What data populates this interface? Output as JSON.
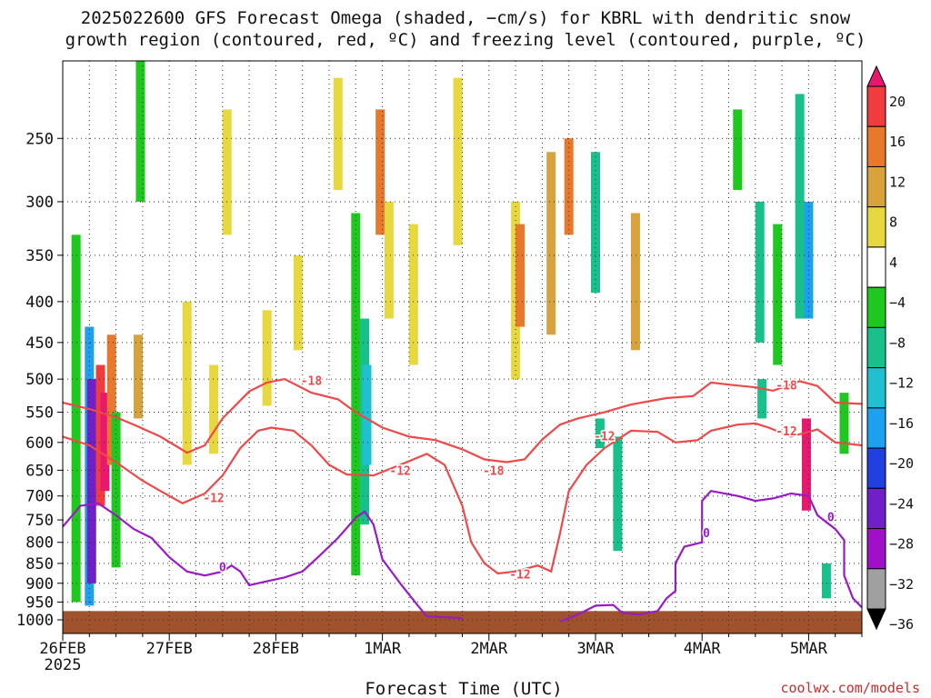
{
  "title": {
    "line1": "2025022600 GFS Forecast Omega (shaded, −cm/s) for KBRL with dendritic snow",
    "line2": "growth region (contoured, red, ºC) and freezing level (contoured, purple, ºC)"
  },
  "watermark": "coolwx.com/models",
  "chart_data": {
    "type": "heatmap",
    "title": "2025022600 GFS Forecast Omega (shaded, −cm/s) for KBRL with dendritic snow growth region (contoured, red, ºC) and freezing level (contoured, purple, ºC)",
    "xlabel": "Forecast Time (UTC)",
    "ylabel": "",
    "x_range_days_labels": [
      "26FEB",
      "27FEB",
      "28FEB",
      "1MAR",
      "2MAR",
      "3MAR",
      "4MAR",
      "5MAR"
    ],
    "x_year_label": "2025",
    "x_ticks": [
      {
        "label": "26FEB",
        "hour": 0
      },
      {
        "label": "27FEB",
        "hour": 24
      },
      {
        "label": "28FEB",
        "hour": 48
      },
      {
        "label": "1MAR",
        "hour": 72
      },
      {
        "label": "2MAR",
        "hour": 96
      },
      {
        "label": "3MAR",
        "hour": 120
      },
      {
        "label": "4MAR",
        "hour": 144
      },
      {
        "label": "5MAR",
        "hour": 168
      }
    ],
    "x_max_hour": 180,
    "y_axis": "pressure (hPa), log scale, inverted",
    "y_ticks": [
      250,
      300,
      350,
      400,
      450,
      500,
      550,
      600,
      650,
      700,
      750,
      800,
      850,
      900,
      950,
      1000
    ],
    "y_range": [
      200,
      1040
    ],
    "grid": "dotted",
    "colorbar": {
      "levels": [
        "20",
        "16",
        "12",
        "8",
        "4",
        "−4",
        "−8",
        "−12",
        "−16",
        "−20",
        "−24",
        "−28",
        "−32",
        "−36"
      ],
      "colors": [
        "#e8186e",
        "#f03c3c",
        "#e8782c",
        "#d8a23c",
        "#e8d840",
        "#ffffff",
        "#1ec81e",
        "#18c08c",
        "#20c0d0",
        "#1ea0f0",
        "#2040e0",
        "#7020c8",
        "#a010c8",
        "#a0a0a0",
        "#000000"
      ]
    },
    "omega_cells": [
      {
        "hour": 3,
        "p_top": 330,
        "p_bot": 950,
        "v": -8
      },
      {
        "hour": 6,
        "p_top": 430,
        "p_bot": 960,
        "v": -20
      },
      {
        "hour": 6.5,
        "p_top": 500,
        "p_bot": 900,
        "v": -28
      },
      {
        "hour": 8.5,
        "p_top": 480,
        "p_bot": 720,
        "v": 16
      },
      {
        "hour": 9.5,
        "p_top": 520,
        "p_bot": 690,
        "v": 20
      },
      {
        "hour": 11,
        "p_top": 440,
        "p_bot": 640,
        "v": 12
      },
      {
        "hour": 12,
        "p_top": 550,
        "p_bot": 860,
        "v": -8
      },
      {
        "hour": 17,
        "p_top": 440,
        "p_bot": 560,
        "v": 8
      },
      {
        "hour": 17.5,
        "p_top": 200,
        "p_bot": 300,
        "v": -8
      },
      {
        "hour": 28,
        "p_top": 400,
        "p_bot": 640,
        "v": 4
      },
      {
        "hour": 34,
        "p_top": 480,
        "p_bot": 620,
        "v": 4
      },
      {
        "hour": 37,
        "p_top": 230,
        "p_bot": 330,
        "v": 4
      },
      {
        "hour": 46,
        "p_top": 410,
        "p_bot": 540,
        "v": 4
      },
      {
        "hour": 53,
        "p_top": 350,
        "p_bot": 460,
        "v": 4
      },
      {
        "hour": 62,
        "p_top": 210,
        "p_bot": 290,
        "v": 4
      },
      {
        "hour": 66,
        "p_top": 310,
        "p_bot": 880,
        "v": -8
      },
      {
        "hour": 68,
        "p_top": 420,
        "p_bot": 760,
        "v": -12
      },
      {
        "hour": 68.5,
        "p_top": 480,
        "p_bot": 640,
        "v": -16
      },
      {
        "hour": 71.5,
        "p_top": 230,
        "p_bot": 330,
        "v": 12
      },
      {
        "hour": 73.5,
        "p_top": 300,
        "p_bot": 420,
        "v": 4
      },
      {
        "hour": 79,
        "p_top": 320,
        "p_bot": 480,
        "v": 4
      },
      {
        "hour": 89,
        "p_top": 210,
        "p_bot": 340,
        "v": 4
      },
      {
        "hour": 102,
        "p_top": 300,
        "p_bot": 500,
        "v": 4
      },
      {
        "hour": 103,
        "p_top": 320,
        "p_bot": 430,
        "v": 12
      },
      {
        "hour": 110,
        "p_top": 260,
        "p_bot": 440,
        "v": 8
      },
      {
        "hour": 114,
        "p_top": 250,
        "p_bot": 330,
        "v": 12
      },
      {
        "hour": 120,
        "p_top": 260,
        "p_bot": 390,
        "v": -12
      },
      {
        "hour": 121,
        "p_top": 560,
        "p_bot": 610,
        "v": -12
      },
      {
        "hour": 125,
        "p_top": 590,
        "p_bot": 820,
        "v": -12
      },
      {
        "hour": 129,
        "p_top": 310,
        "p_bot": 460,
        "v": 8
      },
      {
        "hour": 152,
        "p_top": 230,
        "p_bot": 290,
        "v": -8
      },
      {
        "hour": 157,
        "p_top": 300,
        "p_bot": 450,
        "v": -12
      },
      {
        "hour": 157.5,
        "p_top": 500,
        "p_bot": 560,
        "v": -12
      },
      {
        "hour": 161,
        "p_top": 320,
        "p_bot": 480,
        "v": -8
      },
      {
        "hour": 166,
        "p_top": 220,
        "p_bot": 420,
        "v": -12
      },
      {
        "hour": 168,
        "p_top": 300,
        "p_bot": 420,
        "v": -20
      },
      {
        "hour": 167.5,
        "p_top": 560,
        "p_bot": 730,
        "v": 20
      },
      {
        "hour": 172,
        "p_top": 850,
        "p_bot": 940,
        "v": -12
      },
      {
        "hour": 176,
        "p_top": 520,
        "p_bot": 620,
        "v": -8
      }
    ],
    "contours": {
      "dendritic_minus12": {
        "color": "#f04848",
        "label": "-12",
        "points": [
          [
            0,
            590
          ],
          [
            6,
            605
          ],
          [
            12,
            635
          ],
          [
            18,
            670
          ],
          [
            22,
            690
          ],
          [
            27,
            715
          ],
          [
            32,
            695
          ],
          [
            36,
            660
          ],
          [
            40,
            610
          ],
          [
            44,
            580
          ],
          [
            47,
            575
          ],
          [
            52,
            580
          ],
          [
            56,
            605
          ],
          [
            60,
            640
          ],
          [
            64,
            658
          ],
          [
            70,
            660
          ],
          [
            76,
            640
          ],
          [
            82,
            620
          ],
          [
            86,
            640
          ],
          [
            90,
            720
          ],
          [
            92,
            800
          ],
          [
            95,
            850
          ],
          [
            98,
            875
          ],
          [
            102,
            870
          ],
          [
            107,
            855
          ],
          [
            110,
            870
          ],
          [
            112,
            780
          ],
          [
            114,
            690
          ],
          [
            118,
            640
          ],
          [
            122,
            610
          ],
          [
            128,
            580
          ],
          [
            134,
            582
          ],
          [
            138,
            600
          ],
          [
            143,
            596
          ],
          [
            146,
            580
          ],
          [
            152,
            570
          ],
          [
            156,
            568
          ],
          [
            159,
            575
          ],
          [
            164,
            590
          ],
          [
            170,
            578
          ],
          [
            174,
            600
          ],
          [
            180,
            605
          ]
        ]
      },
      "dendritic_minus18": {
        "color": "#f04848",
        "label": "-18",
        "points": [
          [
            0,
            535
          ],
          [
            6,
            545
          ],
          [
            12,
            558
          ],
          [
            16,
            570
          ],
          [
            22,
            590
          ],
          [
            28,
            618
          ],
          [
            32,
            605
          ],
          [
            36,
            560
          ],
          [
            42,
            518
          ],
          [
            46,
            505
          ],
          [
            50,
            500
          ],
          [
            56,
            520
          ],
          [
            62,
            530
          ],
          [
            66,
            550
          ],
          [
            72,
            575
          ],
          [
            78,
            590
          ],
          [
            84,
            596
          ],
          [
            90,
            612
          ],
          [
            95,
            630
          ],
          [
            100,
            635
          ],
          [
            104,
            630
          ],
          [
            108,
            595
          ],
          [
            112,
            570
          ],
          [
            116,
            560
          ],
          [
            122,
            550
          ],
          [
            128,
            538
          ],
          [
            136,
            528
          ],
          [
            142,
            525
          ],
          [
            146,
            505
          ],
          [
            150,
            508
          ],
          [
            156,
            512
          ],
          [
            160,
            517
          ],
          [
            166,
            503
          ],
          [
            170,
            510
          ],
          [
            174,
            535
          ],
          [
            180,
            537
          ]
        ]
      },
      "freezing_0": {
        "color": "#9a1ac8",
        "label": "0",
        "points": [
          [
            0,
            765
          ],
          [
            4,
            720
          ],
          [
            8,
            715
          ],
          [
            12,
            740
          ],
          [
            16,
            770
          ],
          [
            20,
            790
          ],
          [
            24,
            835
          ],
          [
            28,
            870
          ],
          [
            32,
            880
          ],
          [
            36,
            870
          ],
          [
            38,
            855
          ],
          [
            40,
            870
          ],
          [
            42,
            905
          ],
          [
            46,
            895
          ],
          [
            50,
            885
          ],
          [
            54,
            870
          ],
          [
            58,
            830
          ],
          [
            62,
            790
          ],
          [
            66,
            745
          ],
          [
            68,
            732
          ],
          [
            70,
            760
          ],
          [
            72,
            840
          ],
          [
            76,
            900
          ],
          [
            80,
            960
          ],
          [
            82,
            990
          ],
          [
            90,
            995
          ]
        ]
      },
      "freezing_0_b": {
        "color": "#9a1ac8",
        "points": [
          [
            112,
            1005
          ],
          [
            116,
            985
          ],
          [
            120,
            960
          ],
          [
            124,
            958
          ],
          [
            126,
            980
          ],
          [
            130,
            985
          ],
          [
            134,
            975
          ],
          [
            136,
            940
          ],
          [
            138,
            920
          ],
          [
            138,
            850
          ],
          [
            140,
            810
          ],
          [
            144,
            800
          ],
          [
            144,
            710
          ],
          [
            146,
            690
          ],
          [
            152,
            700
          ],
          [
            156,
            710
          ],
          [
            160,
            705
          ],
          [
            164,
            695
          ],
          [
            168,
            700
          ],
          [
            170,
            740
          ],
          [
            174,
            770
          ],
          [
            176,
            795
          ],
          [
            176,
            880
          ],
          [
            178,
            940
          ],
          [
            180,
            965
          ]
        ]
      }
    },
    "contour_labels": [
      {
        "text": "-18",
        "hour": 56,
        "p": 503,
        "color": "#f04848"
      },
      {
        "text": "-12",
        "hour": 34,
        "p": 705,
        "color": "#f04848"
      },
      {
        "text": "-12",
        "hour": 76,
        "p": 652,
        "color": "#f04848"
      },
      {
        "text": "-18",
        "hour": 97,
        "p": 652,
        "color": "#f04848"
      },
      {
        "text": "-12",
        "hour": 103,
        "p": 878,
        "color": "#f04848"
      },
      {
        "text": "-12",
        "hour": 122,
        "p": 590,
        "color": "#f04848"
      },
      {
        "text": "-18",
        "hour": 163,
        "p": 510,
        "color": "#f04848"
      },
      {
        "text": "-12",
        "hour": 163,
        "p": 582,
        "color": "#f04848"
      },
      {
        "text": "0",
        "hour": 36,
        "p": 860,
        "color": "#9a1ac8"
      },
      {
        "text": "0",
        "hour": 145,
        "p": 780,
        "color": "#9a1ac8"
      },
      {
        "text": "0",
        "hour": 173,
        "p": 745,
        "color": "#9a1ac8"
      }
    ],
    "terrain": {
      "color": "#a0522d",
      "surface_p": 975
    }
  }
}
